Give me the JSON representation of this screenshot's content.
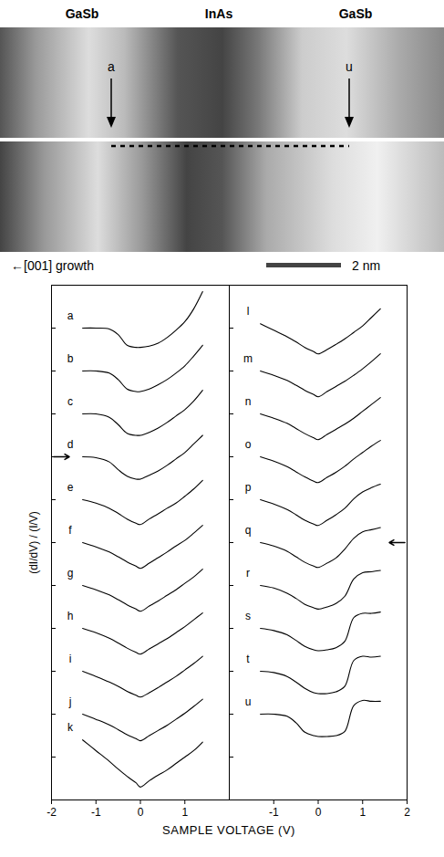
{
  "image": {
    "labels": [
      "GaSb",
      "InAs",
      "GaSb"
    ],
    "markers": [
      "a",
      "u"
    ],
    "caption": "←[001] growth",
    "scale_bar": "2 nm"
  },
  "chart_data": [
    {
      "type": "line",
      "ylabel": "(dI/dV) / (I/V)",
      "xlabel": "SAMPLE VOLTAGE (V)",
      "color": "#000000",
      "tick_labels": "x",
      "xlim": [
        -2,
        2
      ],
      "xticks": [
        -2,
        -1,
        0,
        1
      ],
      "ylim": [
        -1,
        11
      ],
      "yticks": [
        0,
        1,
        2,
        3,
        4,
        5,
        6,
        7,
        8,
        9,
        10
      ],
      "x": [
        -1.3,
        -1.0,
        -0.7,
        -0.5,
        -0.3,
        -0.1,
        0,
        0.2,
        0.4,
        0.6,
        0.8,
        1.0,
        1.2,
        1.4
      ],
      "series": [
        {
          "name": "a",
          "values": [
            10,
            10,
            9.98,
            9.85,
            9.6,
            9.55,
            9.55,
            9.58,
            9.65,
            9.78,
            9.95,
            10.15,
            10.45,
            10.85
          ]
        },
        {
          "name": "b",
          "values": [
            9,
            9,
            8.95,
            8.8,
            8.58,
            8.52,
            8.52,
            8.58,
            8.68,
            8.8,
            8.95,
            9.12,
            9.35,
            9.6
          ]
        },
        {
          "name": "c",
          "values": [
            8,
            8,
            7.92,
            7.75,
            7.55,
            7.5,
            7.5,
            7.57,
            7.67,
            7.8,
            7.95,
            8.1,
            8.3,
            8.55
          ]
        },
        {
          "name": "d",
          "values": [
            7,
            6.98,
            6.88,
            6.7,
            6.55,
            6.48,
            6.48,
            6.57,
            6.67,
            6.8,
            6.95,
            7.1,
            7.3,
            7.5
          ]
        },
        {
          "name": "e",
          "values": [
            6,
            5.92,
            5.8,
            5.68,
            5.55,
            5.45,
            5.42,
            5.55,
            5.67,
            5.8,
            5.92,
            6.08,
            6.25,
            6.45
          ]
        },
        {
          "name": "f",
          "values": [
            5,
            4.9,
            4.78,
            4.67,
            4.55,
            4.45,
            4.4,
            4.52,
            4.65,
            4.78,
            4.92,
            5.05,
            5.22,
            5.4
          ]
        },
        {
          "name": "g",
          "values": [
            4,
            3.9,
            3.78,
            3.67,
            3.55,
            3.45,
            3.4,
            3.52,
            3.64,
            3.77,
            3.9,
            4.05,
            4.2,
            4.38
          ]
        },
        {
          "name": "h",
          "values": [
            3,
            2.9,
            2.77,
            2.66,
            2.54,
            2.44,
            2.4,
            2.52,
            2.64,
            2.76,
            2.9,
            3.04,
            3.2,
            3.36
          ]
        },
        {
          "name": "i",
          "values": [
            2,
            1.88,
            1.75,
            1.65,
            1.53,
            1.44,
            1.4,
            1.5,
            1.62,
            1.75,
            1.88,
            2.03,
            2.18,
            2.35
          ]
        },
        {
          "name": "j",
          "values": [
            1,
            0.88,
            0.75,
            0.64,
            0.52,
            0.43,
            0.38,
            0.5,
            0.62,
            0.74,
            0.88,
            1.02,
            1.18,
            1.35
          ]
        },
        {
          "name": "k",
          "values": [
            0.4,
            0.15,
            -0.1,
            -0.28,
            -0.45,
            -0.6,
            -0.7,
            -0.55,
            -0.42,
            -0.3,
            -0.15,
            0,
            0.15,
            0.35
          ]
        }
      ]
    },
    {
      "type": "line",
      "color": "#000000",
      "tick_labels": "x",
      "xlim": [
        -2,
        2
      ],
      "xticks": [
        -1,
        0,
        1,
        2
      ],
      "ylim": [
        -1,
        11
      ],
      "yticks": [
        0,
        1,
        2,
        3,
        4,
        5,
        6,
        7,
        8,
        9,
        10
      ],
      "x": [
        -1.3,
        -1.0,
        -0.7,
        -0.5,
        -0.3,
        -0.1,
        0,
        0.2,
        0.4,
        0.6,
        0.8,
        1.0,
        1.2,
        1.4
      ],
      "series": [
        {
          "name": "l",
          "values": [
            10.1,
            9.95,
            9.8,
            9.68,
            9.55,
            9.45,
            9.4,
            9.5,
            9.62,
            9.75,
            9.9,
            10.05,
            10.25,
            10.45
          ]
        },
        {
          "name": "m",
          "values": [
            9,
            8.9,
            8.78,
            8.67,
            8.55,
            8.45,
            8.4,
            8.52,
            8.64,
            8.76,
            8.9,
            9.05,
            9.22,
            9.4
          ]
        },
        {
          "name": "n",
          "values": [
            8,
            7.9,
            7.78,
            7.66,
            7.54,
            7.44,
            7.4,
            7.52,
            7.64,
            7.76,
            7.9,
            8.06,
            8.22,
            8.38
          ]
        },
        {
          "name": "o",
          "values": [
            7,
            6.9,
            6.77,
            6.65,
            6.53,
            6.43,
            6.4,
            6.52,
            6.64,
            6.78,
            6.95,
            7.1,
            7.25,
            7.38
          ]
        },
        {
          "name": "p",
          "values": [
            6,
            5.9,
            5.77,
            5.65,
            5.52,
            5.43,
            5.4,
            5.52,
            5.65,
            5.8,
            6.02,
            6.18,
            6.28,
            6.36
          ]
        },
        {
          "name": "q",
          "values": [
            5,
            4.92,
            4.8,
            4.67,
            4.54,
            4.45,
            4.42,
            4.52,
            4.64,
            4.85,
            5.1,
            5.25,
            5.3,
            5.35
          ]
        },
        {
          "name": "r",
          "values": [
            4,
            3.94,
            3.82,
            3.7,
            3.56,
            3.48,
            3.45,
            3.5,
            3.58,
            3.75,
            4.15,
            4.3,
            4.32,
            4.35
          ]
        },
        {
          "name": "s",
          "values": [
            3,
            2.95,
            2.85,
            2.72,
            2.58,
            2.5,
            2.48,
            2.5,
            2.55,
            2.7,
            3.25,
            3.35,
            3.35,
            3.38
          ]
        },
        {
          "name": "t",
          "values": [
            2,
            1.97,
            1.88,
            1.75,
            1.6,
            1.5,
            1.48,
            1.48,
            1.52,
            1.65,
            2.25,
            2.35,
            2.33,
            2.35
          ]
        },
        {
          "name": "u",
          "values": [
            1,
            1,
            0.95,
            0.8,
            0.58,
            0.5,
            0.48,
            0.48,
            0.5,
            0.6,
            1.2,
            1.32,
            1.3,
            1.3
          ]
        }
      ]
    }
  ]
}
